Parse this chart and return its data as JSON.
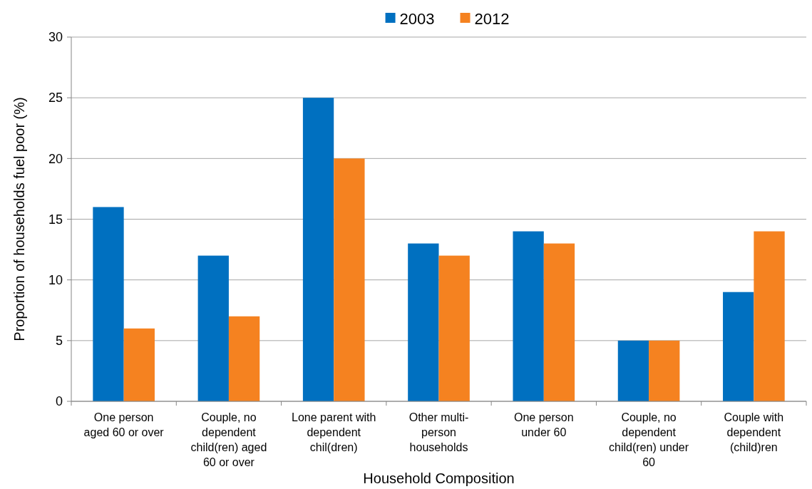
{
  "chart_data": {
    "type": "bar",
    "xlabel": "Household Composition",
    "ylabel": "Proportion of households fuel poor (%)",
    "categories": [
      "One person aged 60 or over",
      "Couple, no dependent child(ren) aged 60 or over",
      "Lone parent with dependent chil(dren)",
      "Other multi-person households",
      "One person under 60",
      "Couple, no dependent child(ren) under 60",
      "Couple with dependent (child)ren"
    ],
    "series": [
      {
        "name": "2003",
        "color": "#0070c0",
        "values": [
          16,
          12,
          25,
          13,
          14,
          5,
          9
        ]
      },
      {
        "name": "2012",
        "color": "#f58220",
        "values": [
          6,
          7,
          20,
          12,
          13,
          5,
          14
        ]
      }
    ],
    "ylim": [
      0,
      30
    ],
    "yticks": [
      0,
      5,
      10,
      15,
      20,
      25,
      30
    ],
    "grid": "y",
    "legend": "top"
  }
}
